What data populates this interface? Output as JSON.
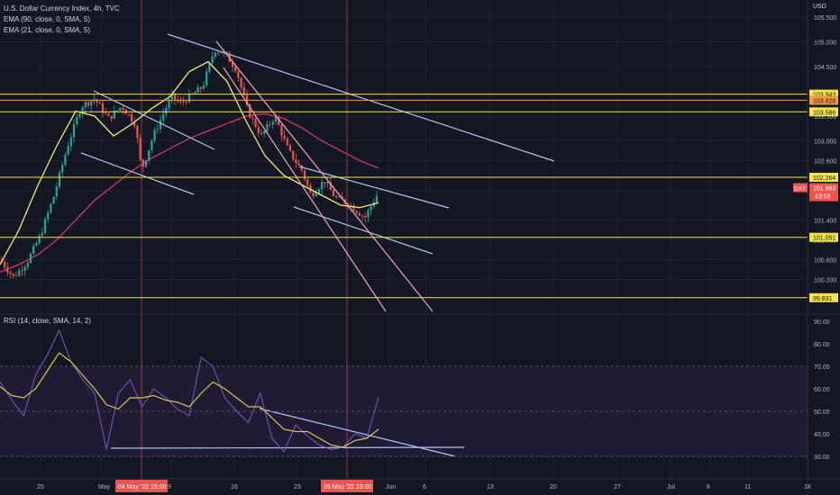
{
  "header": {
    "title": "U.S. Dollar Currency Index, 4h, TVC",
    "ema90": "EMA (90, close, 0, SMA, 5)",
    "ema21": "EMA (21, close, 0, SMA, 5)",
    "rsi": "RSI (14, close, SMA, 14, 2)",
    "currency": "USD"
  },
  "colors": {
    "background": "#131722",
    "hline": "#f5e34a",
    "hline_orange": "#f59b3b",
    "channel_blue": "#a9c4f5",
    "channel_pink": "#f0a3c0",
    "ema90": "#d6336c",
    "ema21": "#f1ea79",
    "up": "#26a69a",
    "down": "#ef5350",
    "rsi": "#7e57c2",
    "rsi_ma": "#d4c54f",
    "marker": "#ef5350"
  },
  "chart_data": [
    {
      "type": "line",
      "title": "U.S. Dollar Currency Index, 4h, TVC",
      "ylabel": "USD",
      "ylim": [
        99.8,
        105.55
      ],
      "y_ticks": [
        "105.500",
        "105.000",
        "104.500",
        "104.000",
        "103.500",
        "103.000",
        "102.600",
        "102.000",
        "101.400",
        "101.000",
        "100.600",
        "100.200"
      ],
      "price_tag": {
        "symbol": "DXY",
        "value": "101.963",
        "countdown": "43:55"
      },
      "horizontal_levels": [
        {
          "value": 103.943,
          "label": "103.943",
          "color": "yellow"
        },
        {
          "value": 103.82,
          "label": "103.820",
          "color": "orange"
        },
        {
          "value": 103.586,
          "label": "103.586",
          "color": "yellow"
        },
        {
          "value": 102.264,
          "label": "102.264",
          "color": "yellow"
        },
        {
          "value": 101.051,
          "label": "101.051",
          "color": "yellow"
        },
        {
          "value": 99.831,
          "label": "99.831",
          "color": "yellow"
        }
      ],
      "x_ticks": [
        "25",
        "May",
        "9",
        "16",
        "23",
        "Jun",
        "6",
        "13",
        "20",
        "27",
        "Jul",
        "6",
        "11",
        "18"
      ],
      "markers": [
        "04 May '22  15:00",
        "26 May '22  19:00"
      ],
      "series": [
        {
          "name": "EMA (90, close, 0, SMA, 5)",
          "values": [
            100.35,
            100.5,
            100.7,
            101.0,
            101.4,
            101.8,
            102.1,
            102.4,
            102.65,
            102.85,
            103.05,
            103.2,
            103.35,
            103.5,
            103.55,
            103.45,
            103.25,
            103.0,
            102.8,
            102.6,
            102.45
          ]
        },
        {
          "name": "EMA (21, close, 0, SMA, 5)",
          "values": [
            100.5,
            101.2,
            102.1,
            102.9,
            103.6,
            103.5,
            103.1,
            103.35,
            103.65,
            103.9,
            104.4,
            104.6,
            104.2,
            103.4,
            102.7,
            102.3,
            102.1,
            101.9,
            101.7,
            101.65,
            101.75
          ]
        }
      ]
    },
    {
      "type": "line",
      "title": "RSI (14, close, SMA, 14, 2)",
      "ylim": [
        26,
        92
      ],
      "y_ticks": [
        "90.00",
        "80.00",
        "70.00",
        "60.00",
        "50.00",
        "40.00",
        "30.00"
      ],
      "bands": [
        70,
        50,
        30
      ],
      "series": [
        {
          "name": "RSI",
          "values": [
            63,
            55,
            48,
            66,
            75,
            86,
            72,
            64,
            58,
            33,
            58,
            64,
            52,
            60,
            56,
            51,
            48,
            74,
            70,
            56,
            50,
            45,
            58,
            38,
            32,
            44,
            39,
            35,
            33,
            34,
            40,
            38,
            56
          ]
        },
        {
          "name": "RSI MA",
          "values": [
            61,
            57,
            56,
            60,
            68,
            76,
            72,
            66,
            60,
            53,
            51,
            56,
            56,
            57,
            55,
            54,
            52,
            58,
            63,
            60,
            56,
            52,
            52,
            47,
            42,
            41,
            41,
            38,
            35,
            34,
            37,
            38,
            42
          ]
        }
      ]
    }
  ]
}
